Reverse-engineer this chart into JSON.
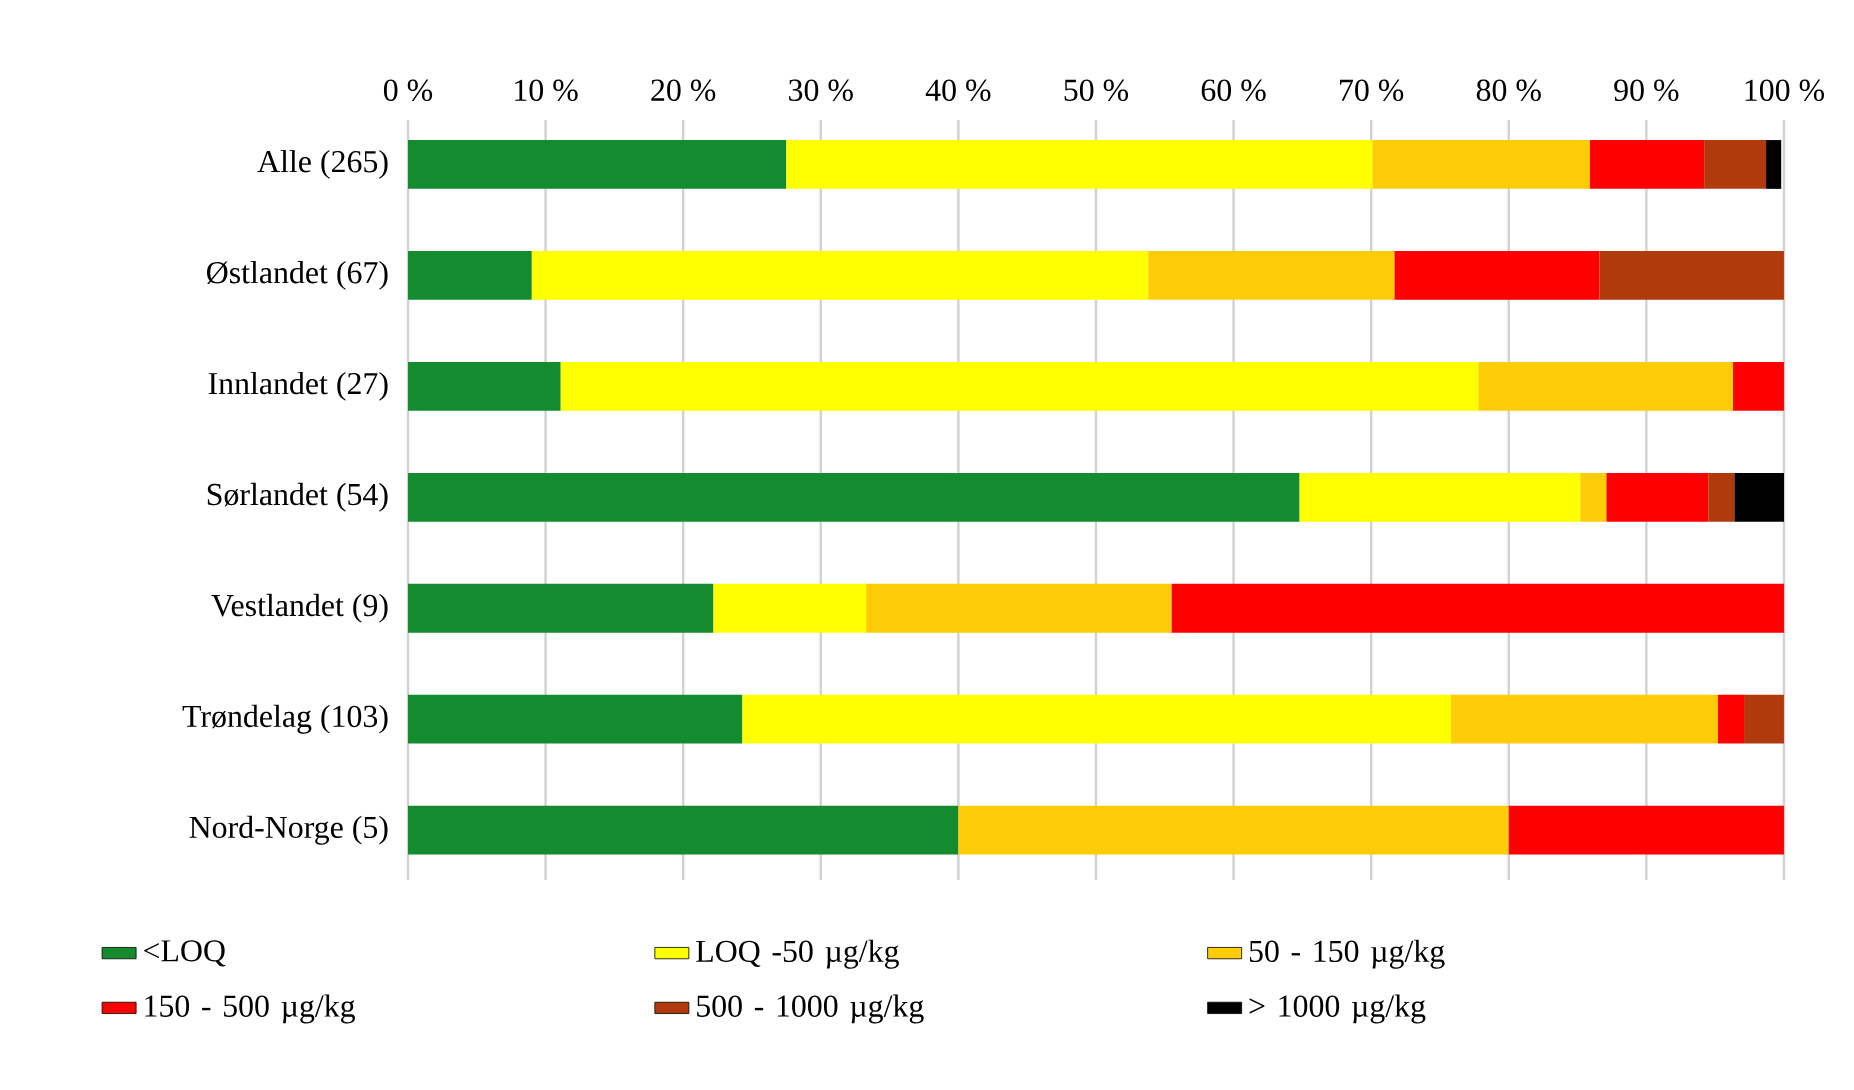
{
  "chart_data": {
    "type": "bar",
    "orientation": "horizontal",
    "stacked": true,
    "grid": "x",
    "legend": "bottom",
    "categories": [
      "Alle (265)",
      "Østlandet (67)",
      "Innlandet (27)",
      "Sørlandet (54)",
      "Vestlandet (9)",
      "Trøndelag (103)",
      "Nord-Norge (5)"
    ],
    "xlim": [
      0,
      100
    ],
    "xticks": [
      {
        "value": 0,
        "label": "0 %"
      },
      {
        "value": 10,
        "label": "10 %"
      },
      {
        "value": 20,
        "label": "20 %"
      },
      {
        "value": 30,
        "label": "30 %"
      },
      {
        "value": 40,
        "label": "40 %"
      },
      {
        "value": 50,
        "label": "50 %"
      },
      {
        "value": 60,
        "label": "60 %"
      },
      {
        "value": 70,
        "label": "70 %"
      },
      {
        "value": 80,
        "label": "80 %"
      },
      {
        "value": 90,
        "label": "90 %"
      },
      {
        "value": 100,
        "label": "100 %"
      }
    ],
    "series": [
      {
        "name": "<LOQ",
        "color": "#138b2e",
        "values": [
          27.5,
          9.0,
          11.1,
          64.8,
          22.2,
          24.3,
          40
        ]
      },
      {
        "name": "LOQ -50 µg/kg",
        "color": "#ffff00",
        "values": [
          42.6,
          44.8,
          66.7,
          20.4,
          11.1,
          51.5,
          null
        ]
      },
      {
        "name": "50 - 150 µg/kg",
        "color": "#ffcc08",
        "values": [
          15.8,
          17.9,
          18.5,
          1.9,
          22.2,
          19.4,
          40
        ]
      },
      {
        "name": "150 - 500 µg/kg",
        "color": "#ff0000",
        "values": [
          8.3,
          14.9,
          3.7,
          7.4,
          44.5,
          1.9,
          20
        ]
      },
      {
        "name": "500 - 1000 µg/kg",
        "color": "#b03a0c",
        "values": [
          4.5,
          13.4,
          null,
          1.9,
          null,
          2.9,
          null
        ]
      },
      {
        "name": "> 1000 µg/kg",
        "color": "#000000",
        "values": [
          1.1,
          null,
          null,
          3.7,
          null,
          null,
          null
        ]
      }
    ]
  }
}
